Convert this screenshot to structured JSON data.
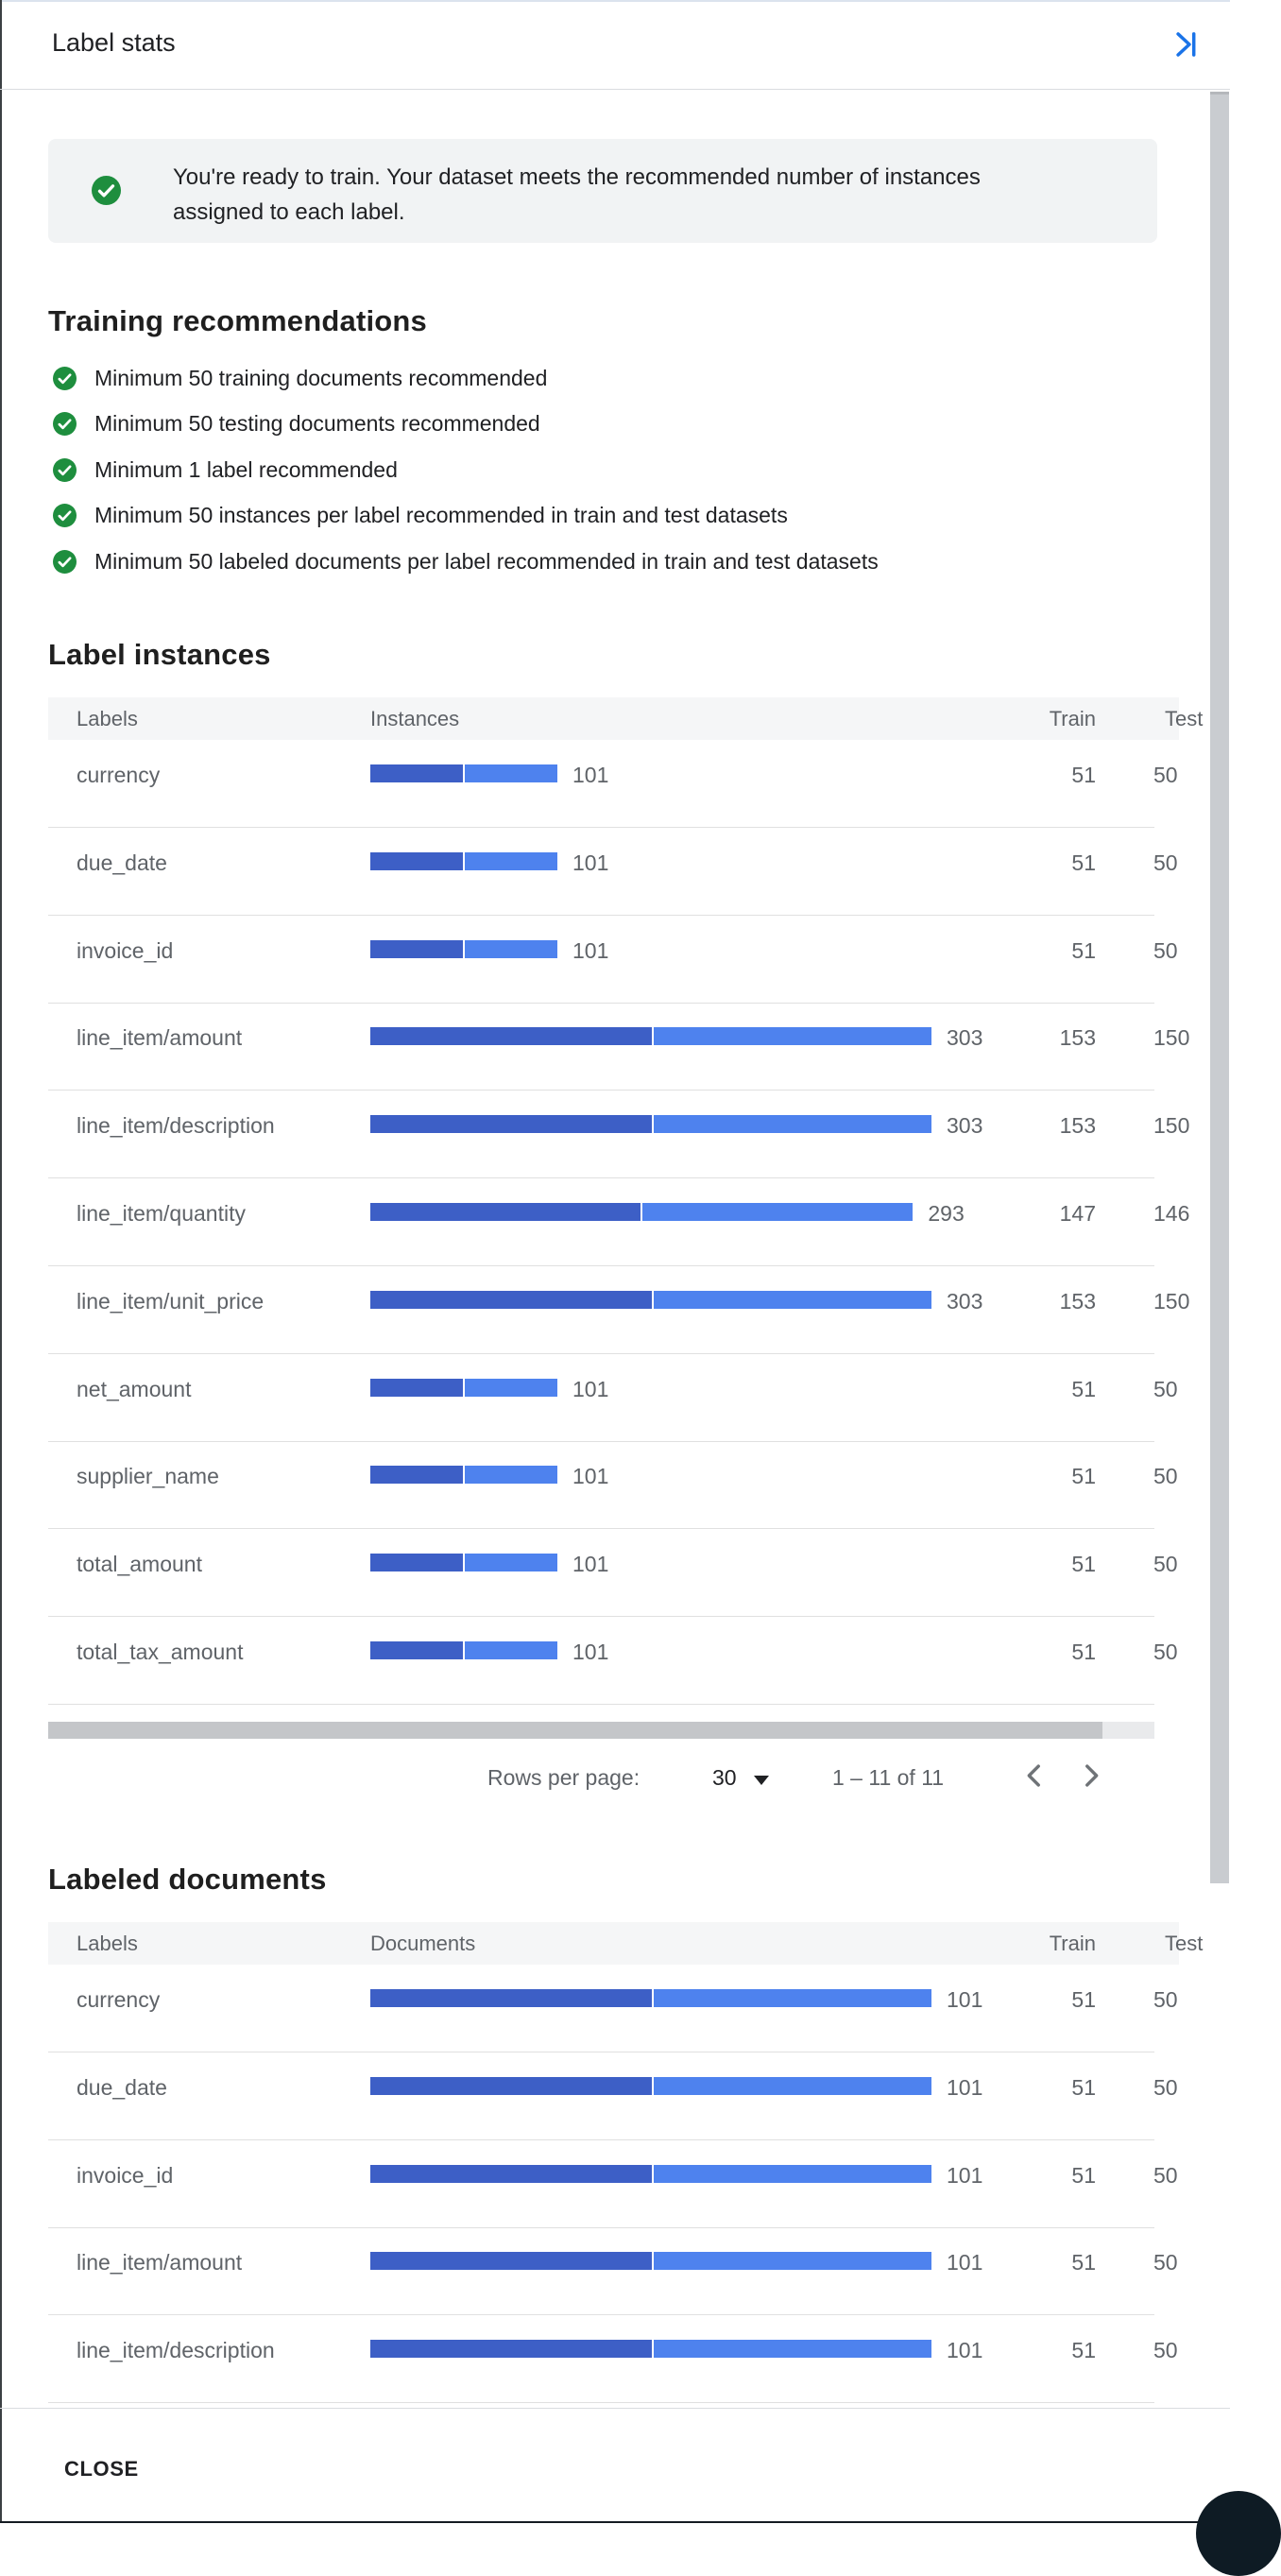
{
  "panel": {
    "title": "Label stats",
    "close_label": "CLOSE"
  },
  "colors": {
    "train": "#3d5fc6",
    "test": "#4e82ee",
    "success_green": "#1e8e3e",
    "accent_blue": "#1a73e8"
  },
  "banner": {
    "text": "You're ready to train. Your dataset meets the recommended number of instances assigned to each label."
  },
  "recommendations": {
    "heading": "Training recommendations",
    "items": [
      "Minimum 50 training documents recommended",
      "Minimum 50 testing documents recommended",
      "Minimum 1 label recommended",
      "Minimum 50 instances per label recommended in train and test datasets",
      "Minimum 50 labeled documents per label recommended in train and test datasets"
    ]
  },
  "label_instances": {
    "heading": "Label instances",
    "columns": {
      "labels": "Labels",
      "bars": "Instances",
      "train": "Train",
      "test": "Test"
    },
    "max": 303,
    "rows": [
      {
        "label": "currency",
        "total": 101,
        "train": 51,
        "test": 50
      },
      {
        "label": "due_date",
        "total": 101,
        "train": 51,
        "test": 50
      },
      {
        "label": "invoice_id",
        "total": 101,
        "train": 51,
        "test": 50
      },
      {
        "label": "line_item/amount",
        "total": 303,
        "train": 153,
        "test": 150
      },
      {
        "label": "line_item/description",
        "total": 303,
        "train": 153,
        "test": 150
      },
      {
        "label": "line_item/quantity",
        "total": 293,
        "train": 147,
        "test": 146
      },
      {
        "label": "line_item/unit_price",
        "total": 303,
        "train": 153,
        "test": 150
      },
      {
        "label": "net_amount",
        "total": 101,
        "train": 51,
        "test": 50
      },
      {
        "label": "supplier_name",
        "total": 101,
        "train": 51,
        "test": 50
      },
      {
        "label": "total_amount",
        "total": 101,
        "train": 51,
        "test": 50
      },
      {
        "label": "total_tax_amount",
        "total": 101,
        "train": 51,
        "test": 50
      }
    ],
    "pagination": {
      "rows_per_page_label": "Rows per page:",
      "rows_per_page": "30",
      "range": "1 – 11 of 11"
    }
  },
  "labeled_documents": {
    "heading": "Labeled documents",
    "columns": {
      "labels": "Labels",
      "bars": "Documents",
      "train": "Train",
      "test": "Test"
    },
    "max": 101,
    "rows": [
      {
        "label": "currency",
        "total": 101,
        "train": 51,
        "test": 50
      },
      {
        "label": "due_date",
        "total": 101,
        "train": 51,
        "test": 50
      },
      {
        "label": "invoice_id",
        "total": 101,
        "train": 51,
        "test": 50
      },
      {
        "label": "line_item/amount",
        "total": 101,
        "train": 51,
        "test": 50
      },
      {
        "label": "line_item/description",
        "total": 101,
        "train": 51,
        "test": 50
      }
    ]
  }
}
